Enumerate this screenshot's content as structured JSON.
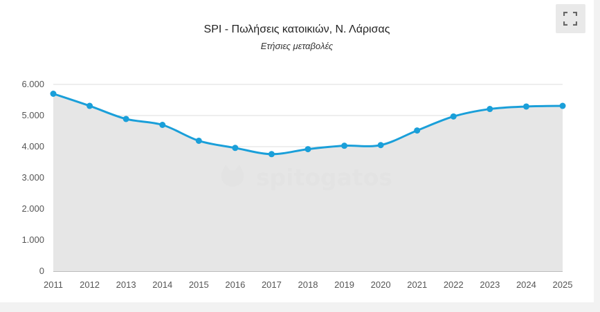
{
  "chart_data": {
    "type": "area",
    "title": "SPI - Πωλήσεις κατοικιών, Ν. Λάρισας",
    "subtitle": "Ετήσιες μεταβολές",
    "x": [
      "2011",
      "2012",
      "2013",
      "2014",
      "2015",
      "2016",
      "2017",
      "2018",
      "2019",
      "2020",
      "2021",
      "2022",
      "2023",
      "2024",
      "2025"
    ],
    "values": [
      5700,
      5310,
      4890,
      4700,
      4190,
      3960,
      3760,
      3920,
      4030,
      4050,
      4520,
      4970,
      5210,
      5290,
      5310
    ],
    "ylim": [
      0,
      6000
    ],
    "yticks": [
      0,
      1000,
      2000,
      3000,
      4000,
      5000,
      6000
    ],
    "ytick_labels": [
      "0",
      "1.000",
      "2.000",
      "3.000",
      "4.000",
      "5.000",
      "6.000"
    ],
    "grid": true,
    "colors": {
      "line": "#1a9fd9",
      "fill": "#e6e6e6",
      "grid": "#dcdcdc"
    }
  },
  "watermark": "spitogatos",
  "fullscreen_icon": "expand-icon"
}
